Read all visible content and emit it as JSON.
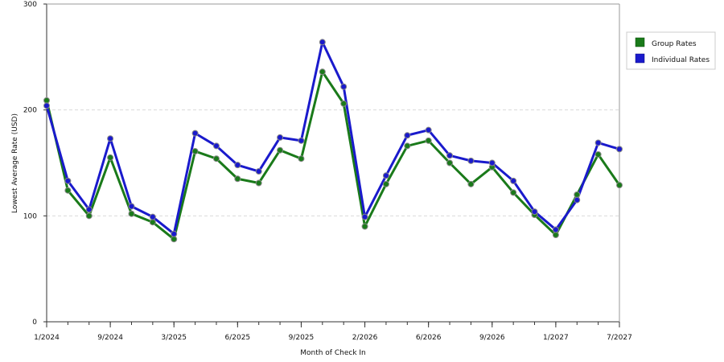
{
  "chart_data": {
    "type": "line",
    "xlabel": "Month of Check In",
    "ylabel": "Lowest Average Rate (USD)",
    "ylim": [
      0,
      300
    ],
    "y_ticks": [
      0,
      100,
      200,
      300
    ],
    "x_tick_labels": [
      "1/2024",
      "9/2024",
      "3/2025",
      "6/2025",
      "9/2025",
      "2/2026",
      "6/2026",
      "9/2026",
      "1/2027",
      "7/2027"
    ],
    "x_tick_indices": [
      0,
      3,
      6,
      9,
      12,
      15,
      18,
      21,
      24,
      27
    ],
    "grid": true,
    "legend_position": "right",
    "series": [
      {
        "name": "Group Rates",
        "color": "#1a7a1a",
        "values": [
          209,
          124,
          100,
          155,
          102,
          94,
          78,
          161,
          154,
          135,
          131,
          162,
          154,
          236,
          206,
          90,
          130,
          166,
          171,
          150,
          130,
          146,
          122,
          101,
          82,
          120,
          158,
          129
        ]
      },
      {
        "name": "Individual Rates",
        "color": "#1a1acc",
        "values": [
          204,
          133,
          106,
          173,
          109,
          99,
          83,
          178,
          166,
          148,
          142,
          174,
          171,
          264,
          222,
          99,
          138,
          176,
          181,
          157,
          152,
          150,
          133,
          104,
          87,
          115,
          169,
          163
        ]
      }
    ]
  }
}
